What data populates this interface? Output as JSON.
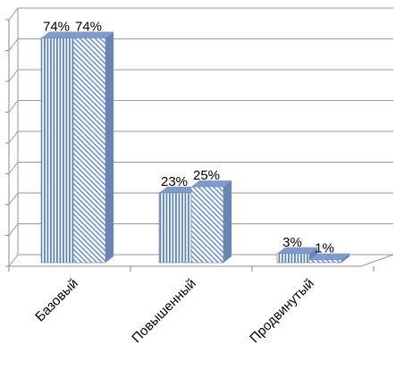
{
  "chart_data": {
    "type": "bar",
    "categories": [
      "Базовый",
      "Повышенный",
      "Продвинутый"
    ],
    "series": [
      {
        "values": [
          74,
          23,
          3
        ],
        "labels": [
          "74%",
          "23%",
          "3%"
        ],
        "pattern": "vertical-stripes"
      },
      {
        "values": [
          74,
          25,
          1
        ],
        "labels": [
          "74%",
          "25%",
          "1%"
        ],
        "pattern": "diagonal-stripes"
      }
    ],
    "ylim": [
      0,
      80
    ],
    "grid": true,
    "legend": "none",
    "colors": {
      "bar_stripe": "#5b83c4",
      "bar_top": "#7f9bc9",
      "bar_side": "#6a84b4",
      "grid": "#9a9a9a",
      "axis": "#8a8a8a"
    }
  }
}
